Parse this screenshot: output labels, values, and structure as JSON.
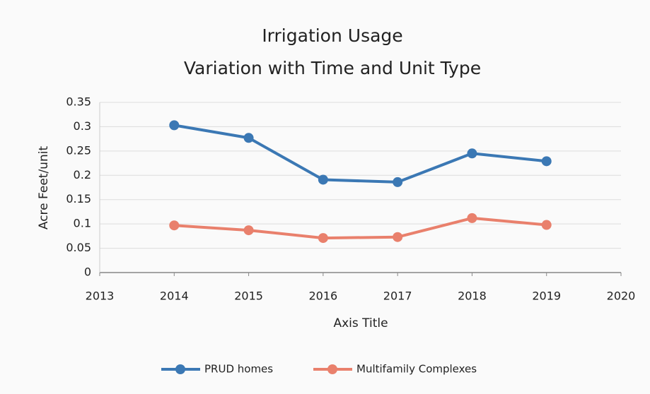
{
  "chart_data": {
    "type": "line",
    "title": "Irrigation Usage",
    "subtitle": "Variation with Time and Unit Type",
    "x_label": "Axis Title",
    "y_label": "Acre Feet/unit",
    "x": [
      2014,
      2015,
      2016,
      2017,
      2018,
      2019
    ],
    "series": [
      {
        "name": "PRUD homes",
        "color": "#3b78b4",
        "values": [
          0.303,
          0.277,
          0.191,
          0.186,
          0.245,
          0.229
        ]
      },
      {
        "name": "Multifamily Complexes",
        "color": "#e9806c",
        "values": [
          0.097,
          0.087,
          0.071,
          0.073,
          0.112,
          0.098
        ]
      }
    ],
    "xlim": [
      2013,
      2020
    ],
    "xticks": [
      2013,
      2014,
      2015,
      2016,
      2017,
      2018,
      2019,
      2020
    ],
    "ylim": [
      0,
      0.35
    ],
    "yticks": [
      0,
      0.05,
      0.1,
      0.15,
      0.2,
      0.25,
      0.3,
      0.35
    ],
    "grid": true,
    "legend": "bottom"
  }
}
